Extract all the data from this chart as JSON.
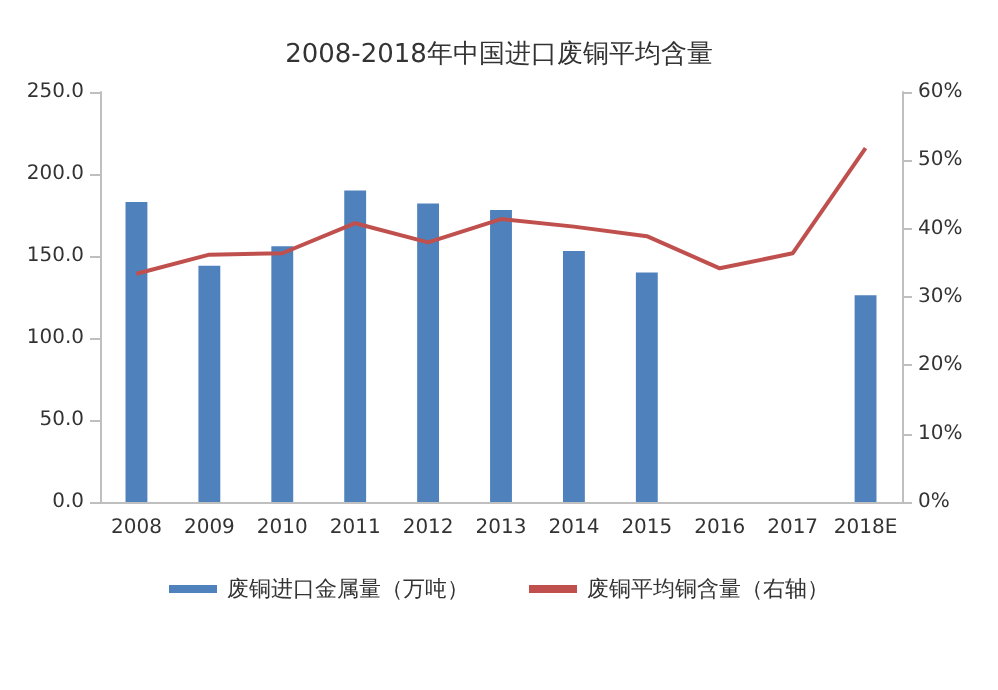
{
  "chart_data": {
    "type": "bar",
    "title": "2008-2018年中国进口废铜平均含量",
    "categories": [
      "2008",
      "2009",
      "2010",
      "2011",
      "2012",
      "2013",
      "2014",
      "2015",
      "2016",
      "2017",
      "2018E"
    ],
    "series": [
      {
        "name": "废铜进口金属量（万吨）",
        "color": "#4f81bd",
        "values": [
          183,
          144,
          156,
          190,
          182,
          178,
          153,
          140,
          null,
          null,
          126
        ]
      },
      {
        "name": "废铜平均铜含量（右轴）",
        "type": "line",
        "axis": "y2",
        "color": "#c0504d",
        "values": [
          33.4,
          36.2,
          36.4,
          40.8,
          38,
          41.4,
          40.3,
          38.9,
          34.2,
          36.4,
          51.8
        ]
      }
    ],
    "ylim": [
      0,
      250
    ],
    "yticks": [
      {
        "value": 0,
        "label": "0.0"
      },
      {
        "value": 50,
        "label": "50.0"
      },
      {
        "value": 100,
        "label": "100.0"
      },
      {
        "value": 150,
        "label": "150.0"
      },
      {
        "value": 200,
        "label": "200.0"
      },
      {
        "value": 250,
        "label": "250.0"
      }
    ],
    "y2lim": [
      0,
      60
    ],
    "y2ticks": [
      {
        "value": 0,
        "label": "0%"
      },
      {
        "value": 10,
        "label": "10%"
      },
      {
        "value": 20,
        "label": "20%"
      },
      {
        "value": 30,
        "label": "30%"
      },
      {
        "value": 40,
        "label": "40%"
      },
      {
        "value": 50,
        "label": "50%"
      },
      {
        "value": 60,
        "label": "60%"
      }
    ],
    "grid": false,
    "legend": "bottom",
    "marker": "none"
  }
}
